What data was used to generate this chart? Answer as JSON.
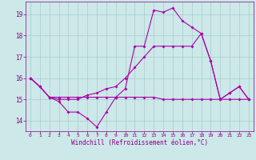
{
  "xlabel": "Windchill (Refroidissement éolien,°C)",
  "background_color": "#cce8e8",
  "grid_color": "#aacccc",
  "line_color": "#aa00aa",
  "xlim": [
    -0.5,
    23.5
  ],
  "ylim": [
    13.5,
    19.6
  ],
  "yticks": [
    14,
    15,
    16,
    17,
    18,
    19
  ],
  "xticks": [
    0,
    1,
    2,
    3,
    4,
    5,
    6,
    7,
    8,
    9,
    10,
    11,
    12,
    13,
    14,
    15,
    16,
    17,
    18,
    19,
    20,
    21,
    22,
    23
  ],
  "line1_y": [
    16.0,
    15.6,
    15.1,
    14.9,
    14.4,
    14.4,
    14.1,
    13.7,
    14.4,
    15.1,
    15.5,
    17.5,
    17.5,
    19.2,
    19.1,
    19.3,
    18.7,
    18.4,
    18.1,
    16.8,
    15.0,
    15.3,
    15.6,
    15.0
  ],
  "line2_y": [
    16.0,
    15.6,
    15.1,
    15.0,
    15.0,
    15.0,
    15.2,
    15.3,
    15.5,
    15.6,
    16.0,
    16.5,
    17.0,
    17.5,
    17.5,
    17.5,
    17.5,
    17.5,
    18.1,
    16.8,
    15.0,
    15.3,
    15.6,
    15.0
  ],
  "line3_y": [
    16.0,
    15.6,
    15.1,
    15.1,
    15.1,
    15.1,
    15.1,
    15.1,
    15.1,
    15.1,
    15.1,
    15.1,
    15.1,
    15.1,
    15.0,
    15.0,
    15.0,
    15.0,
    15.0,
    15.0,
    15.0,
    15.0,
    15.0,
    15.0
  ]
}
